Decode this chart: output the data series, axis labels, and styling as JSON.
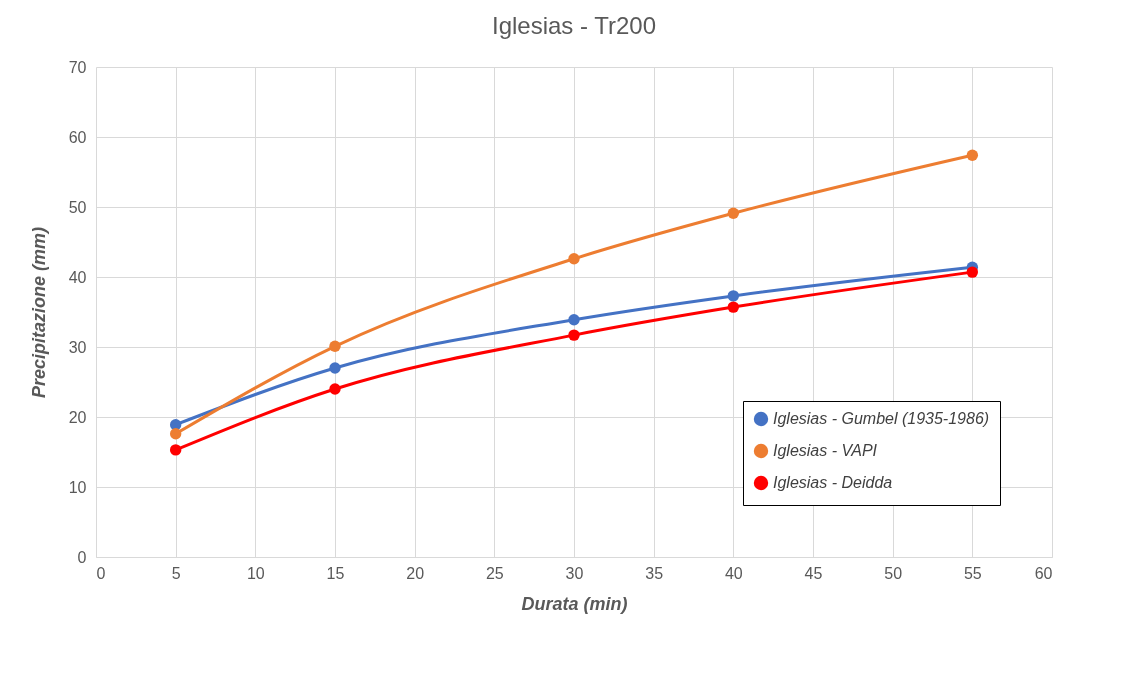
{
  "chart_data": {
    "type": "line",
    "title": "Iglesias - Tr200",
    "xlabel": "Durata (min)",
    "ylabel": "Precipitazione (mm)",
    "x": [
      5,
      15,
      30,
      40,
      55
    ],
    "series": [
      {
        "name": "Iglesias - Gumbel (1935-1986)",
        "color": "#4472c4",
        "values": [
          18.9,
          27.0,
          33.9,
          37.3,
          41.4
        ]
      },
      {
        "name": "Iglesias - VAPI",
        "color": "#ed7d31",
        "values": [
          17.6,
          30.1,
          42.6,
          49.1,
          57.4
        ]
      },
      {
        "name": "Iglesias - Deidda",
        "color": "#ff0000",
        "values": [
          15.3,
          24.0,
          31.7,
          35.7,
          40.7
        ]
      }
    ],
    "xlim": [
      0,
      60
    ],
    "xticks": [
      0,
      5,
      10,
      15,
      20,
      25,
      30,
      35,
      40,
      45,
      50,
      55,
      60
    ],
    "ylim": [
      0,
      70
    ],
    "yticks": [
      0,
      10,
      20,
      30,
      40,
      50,
      60,
      70
    ],
    "grid": true,
    "legend": "bottom right",
    "marker": "circle"
  }
}
